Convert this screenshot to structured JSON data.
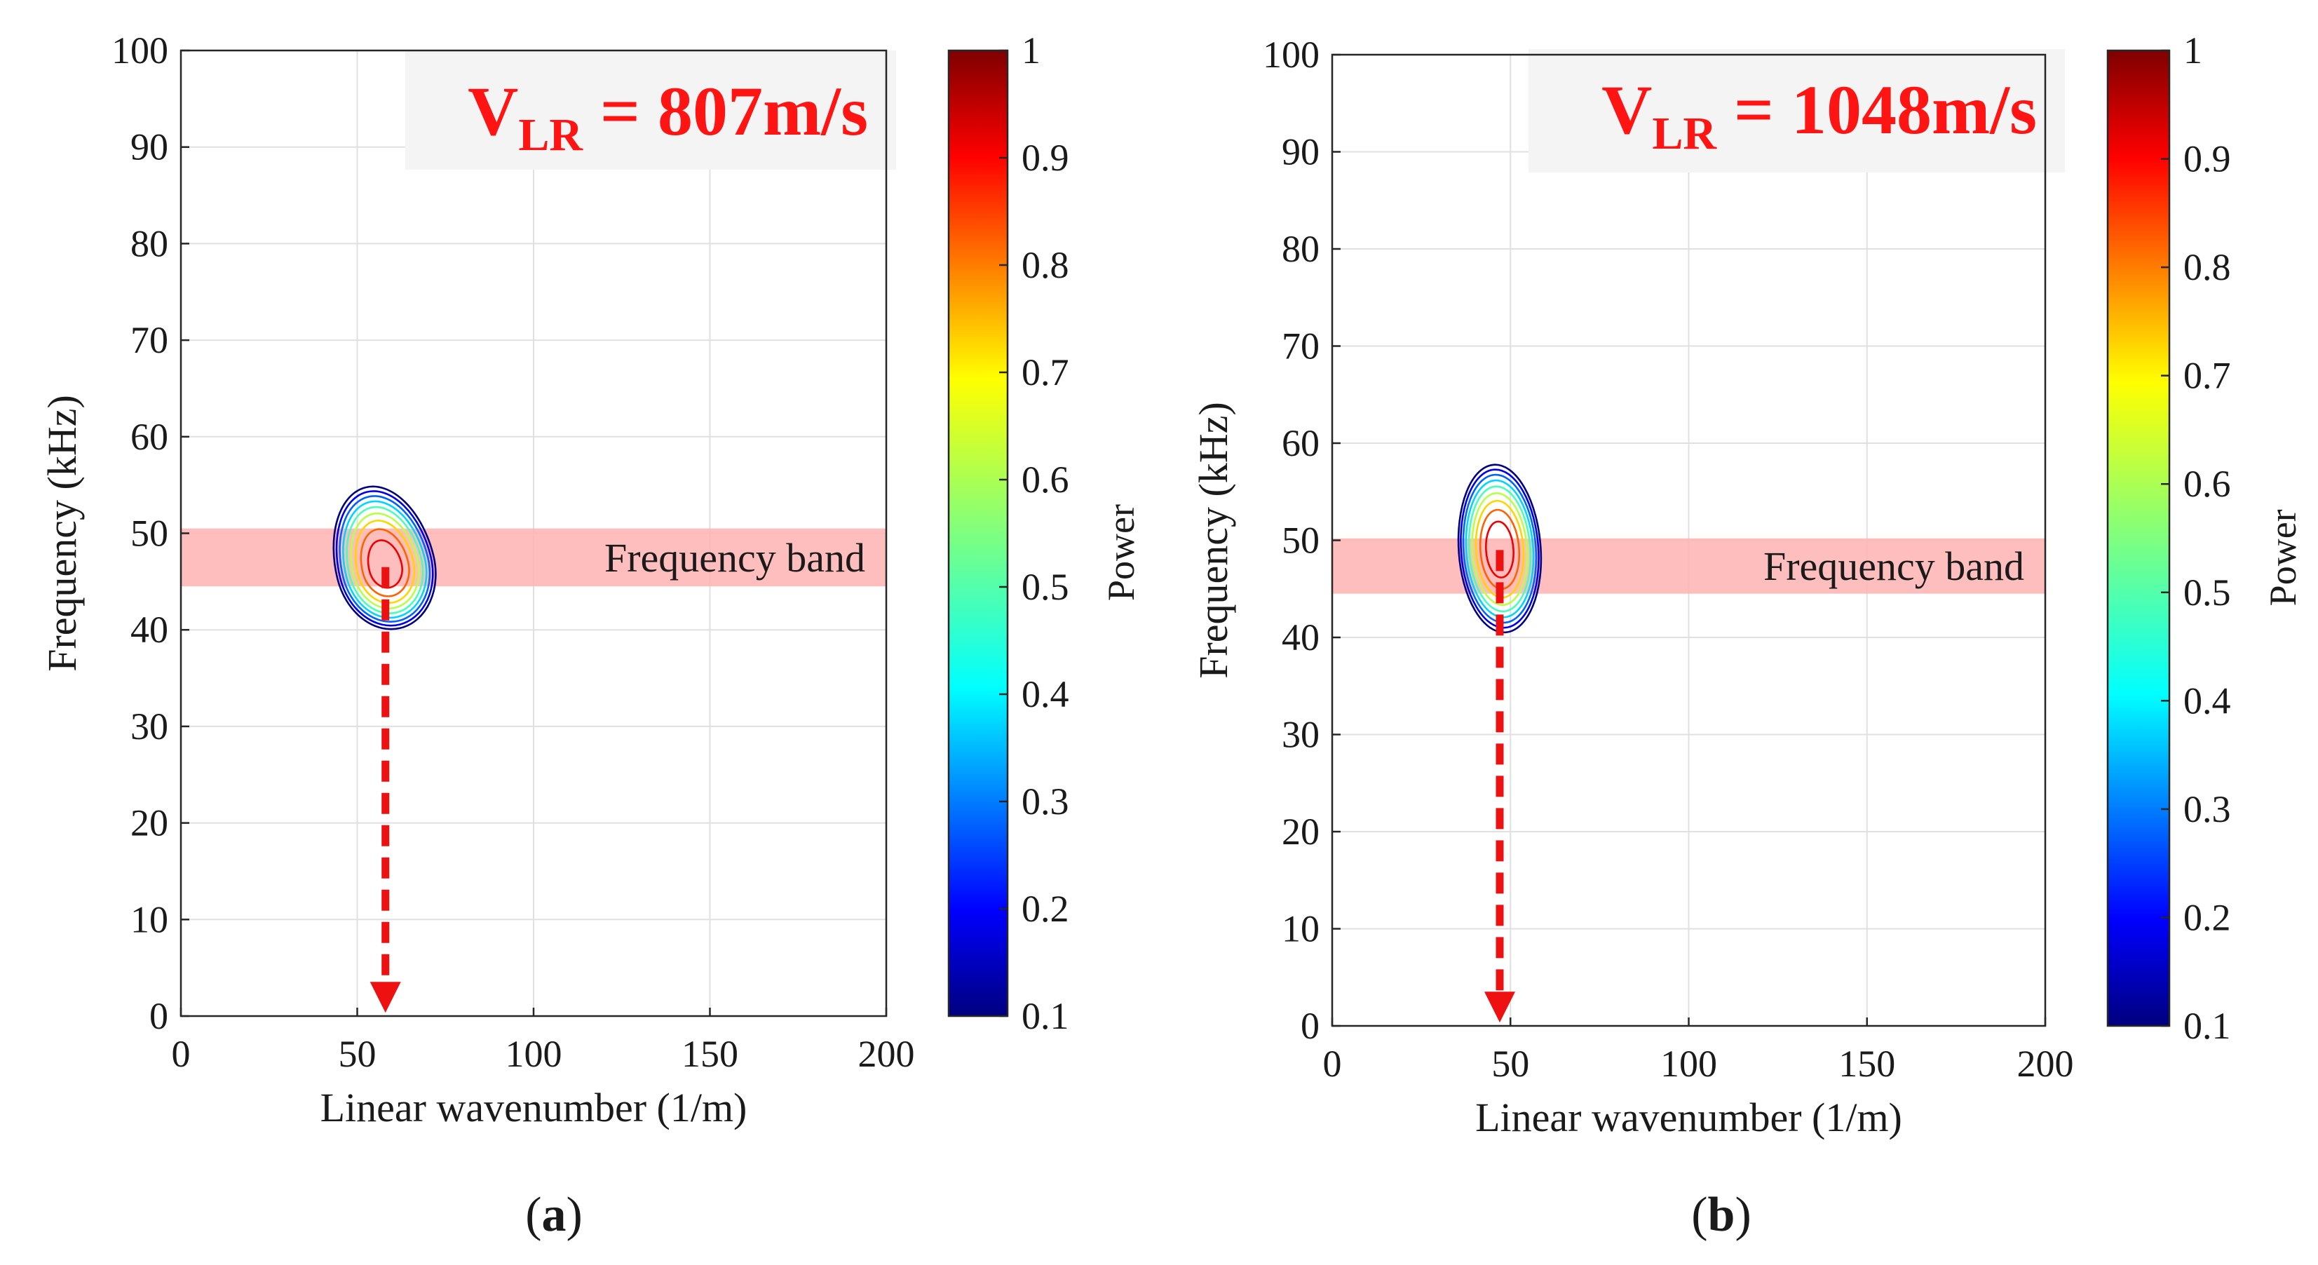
{
  "colors": {
    "band": "#ffb3b3",
    "velocity_text": "#ff1414",
    "arrow": "#ee1111",
    "grid": "#e0e0e0",
    "axis": "#262626",
    "label_box": "#f4f4f4"
  },
  "chart_data": [
    {
      "type": "contour",
      "panel": "a",
      "caption": {
        "open": "(",
        "letter": "a",
        "close": ")"
      },
      "xlabel": "Linear wavenumber (1/m)",
      "ylabel": "Frequency (kHz)",
      "xlim": [
        0,
        200
      ],
      "ylim": [
        0,
        100
      ],
      "xticks": [
        0,
        50,
        100,
        150,
        200
      ],
      "yticks": [
        0,
        10,
        20,
        30,
        40,
        50,
        60,
        70,
        80,
        90,
        100
      ],
      "grid": true,
      "velocity": {
        "prefix": "V",
        "subscript": "LR",
        "value_text": " = 807m/s"
      },
      "frequency_band": {
        "low": 44.5,
        "high": 50.5,
        "label": "Frequency band"
      },
      "peak": {
        "wavenumber": 58,
        "frequency": 46.5
      },
      "contour_extent": {
        "half_width_k": 14,
        "up_f": 8.5,
        "down_f": 6.5,
        "tilt_deg": -14
      },
      "contour_levels": [
        0.1,
        0.2,
        0.3,
        0.4,
        0.5,
        0.6,
        0.7,
        0.8,
        0.9
      ],
      "arrow": {
        "from_frequency": 46.5,
        "to_frequency": 0,
        "at_wavenumber": 58
      },
      "colorbar": {
        "label": "Power",
        "min": 0.1,
        "max": 1,
        "ticks": [
          "0.1",
          "0.2",
          "0.3",
          "0.4",
          "0.5",
          "0.6",
          "0.7",
          "0.8",
          "0.9",
          "1"
        ]
      }
    },
    {
      "type": "contour",
      "panel": "b",
      "caption": {
        "open": "(",
        "letter": "b",
        "close": ")"
      },
      "xlabel": "Linear wavenumber (1/m)",
      "ylabel": "Frequency (kHz)",
      "xlim": [
        0,
        200
      ],
      "ylim": [
        0,
        100
      ],
      "xticks": [
        0,
        50,
        100,
        150,
        200
      ],
      "yticks": [
        0,
        10,
        20,
        30,
        40,
        50,
        60,
        70,
        80,
        90,
        100
      ],
      "grid": true,
      "velocity": {
        "prefix": "V",
        "subscript": "LR",
        "value_text": " = 1048m/s"
      },
      "frequency_band": {
        "low": 44.5,
        "high": 50.2,
        "label": "Frequency band"
      },
      "peak": {
        "wavenumber": 47,
        "frequency": 49
      },
      "contour_extent": {
        "half_width_k": 11.5,
        "up_f": 8.8,
        "down_f": 8.5,
        "tilt_deg": -4
      },
      "contour_levels": [
        0.1,
        0.2,
        0.3,
        0.4,
        0.5,
        0.6,
        0.7,
        0.8,
        0.9
      ],
      "arrow": {
        "from_frequency": 49,
        "to_frequency": 0,
        "at_wavenumber": 47
      },
      "colorbar": {
        "label": "Power",
        "min": 0.1,
        "max": 1,
        "ticks": [
          "0.1",
          "0.2",
          "0.3",
          "0.4",
          "0.5",
          "0.6",
          "0.7",
          "0.8",
          "0.9",
          "1"
        ]
      }
    }
  ]
}
